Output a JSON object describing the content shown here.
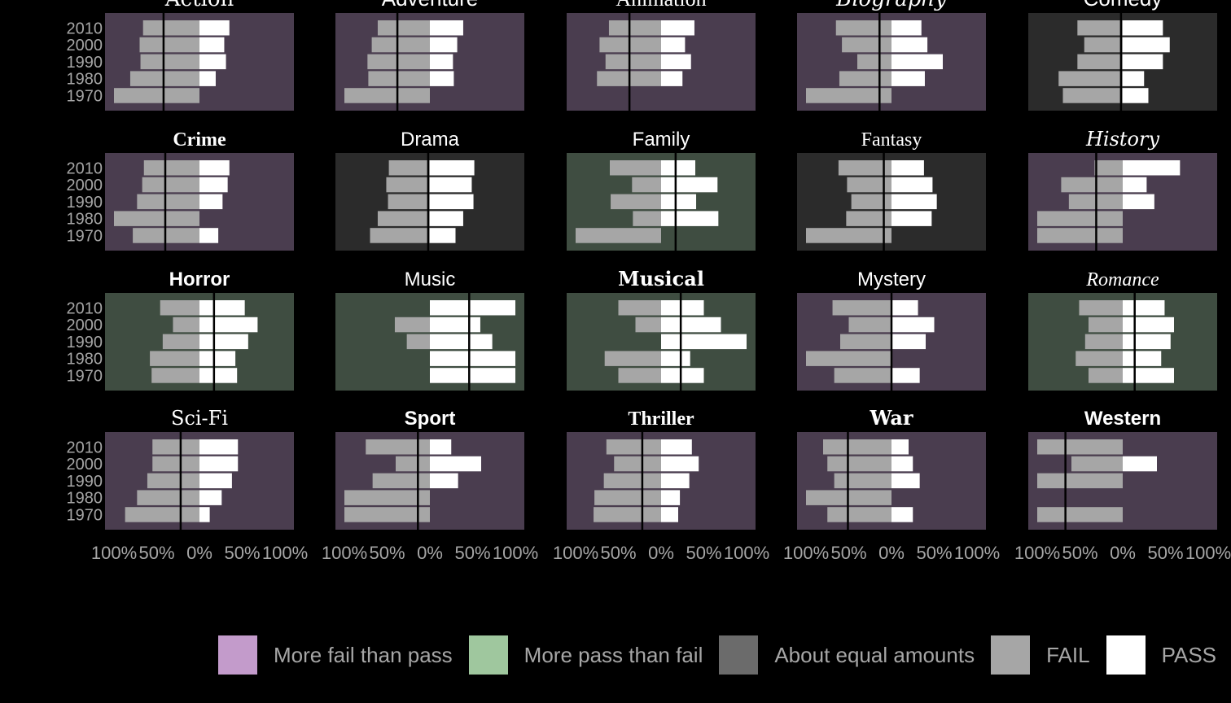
{
  "chart_data": {
    "type": "bar",
    "orientation": "horizontal",
    "layout": "facet grid, 4 rows x 5 columns",
    "x_ticks": [
      "100%",
      "50%",
      "0%",
      "50%",
      "100%"
    ],
    "xlim": [
      -1,
      1
    ],
    "years": [
      "2010",
      "2000",
      "1990",
      "1980",
      "1970"
    ],
    "legend_position": "bottom",
    "colors": {
      "fail_bar": "#a6a6a6",
      "pass_bar": "#ffffff",
      "more_fail_panel": "#4a3d4f",
      "more_pass_panel": "#3f4d41",
      "equal_panel": "#2b2b2b"
    },
    "legend": [
      {
        "label": "More fail than pass",
        "color": "#c39bcb"
      },
      {
        "label": "More pass than fail",
        "color": "#9fc79e"
      },
      {
        "label": "About equal amounts",
        "color": "#6b6b6b"
      },
      {
        "label": "FAIL",
        "color": "#a6a6a6"
      },
      {
        "label": "PASS",
        "color": "#ffffff"
      }
    ],
    "panels": [
      {
        "title": "Action",
        "category": "more_fail",
        "net": -0.42,
        "fail": [
          0.66,
          0.7,
          0.69,
          0.81,
          1.0
        ],
        "pass": [
          0.35,
          0.29,
          0.31,
          0.19,
          0.0
        ]
      },
      {
        "title": "Adventure",
        "category": "more_fail",
        "net": -0.38,
        "fail": [
          0.61,
          0.68,
          0.73,
          0.72,
          1.0
        ],
        "pass": [
          0.39,
          0.32,
          0.27,
          0.28,
          0.0
        ]
      },
      {
        "title": "Animation",
        "category": "more_fail",
        "net": -0.37,
        "fail": [
          0.61,
          0.72,
          0.65,
          0.75,
          0.0
        ],
        "pass": [
          0.39,
          0.28,
          0.35,
          0.25,
          0.0
        ]
      },
      {
        "title": "Biography",
        "category": "more_fail",
        "net": -0.14,
        "fail": [
          0.65,
          0.58,
          0.4,
          0.61,
          1.0
        ],
        "pass": [
          0.35,
          0.42,
          0.6,
          0.39,
          0.0
        ]
      },
      {
        "title": "Comedy",
        "category": "equal",
        "net": -0.02,
        "fail": [
          0.53,
          0.45,
          0.53,
          0.75,
          0.7
        ],
        "pass": [
          0.47,
          0.55,
          0.47,
          0.25,
          0.3
        ]
      },
      {
        "title": "Crime",
        "category": "more_fail",
        "net": -0.4,
        "fail": [
          0.65,
          0.67,
          0.73,
          1.0,
          0.78
        ],
        "pass": [
          0.35,
          0.33,
          0.27,
          0.0,
          0.22
        ]
      },
      {
        "title": "Drama",
        "category": "equal",
        "net": -0.02,
        "fail": [
          0.48,
          0.51,
          0.49,
          0.61,
          0.7
        ],
        "pass": [
          0.52,
          0.49,
          0.51,
          0.39,
          0.3
        ]
      },
      {
        "title": "Family",
        "category": "more_pass",
        "net": 0.17,
        "fail": [
          0.6,
          0.34,
          0.59,
          0.33,
          1.0
        ],
        "pass": [
          0.4,
          0.66,
          0.41,
          0.67,
          0.0
        ]
      },
      {
        "title": "Fantasy",
        "category": "equal",
        "net": -0.09,
        "fail": [
          0.62,
          0.52,
          0.47,
          0.53,
          1.0
        ],
        "pass": [
          0.38,
          0.48,
          0.53,
          0.47,
          0.0
        ]
      },
      {
        "title": "History",
        "category": "more_fail",
        "net": -0.31,
        "fail": [
          0.33,
          0.72,
          0.63,
          1.0,
          1.0
        ],
        "pass": [
          0.67,
          0.28,
          0.37,
          0.0,
          0.0
        ]
      },
      {
        "title": "Horror",
        "category": "more_pass",
        "net": 0.17,
        "fail": [
          0.46,
          0.31,
          0.43,
          0.58,
          0.56
        ],
        "pass": [
          0.53,
          0.68,
          0.57,
          0.42,
          0.44
        ]
      },
      {
        "title": "Music",
        "category": "more_pass",
        "net": 0.46,
        "fail": [
          0.0,
          0.41,
          0.27,
          0.0,
          0.0
        ],
        "pass": [
          1.0,
          0.59,
          0.73,
          1.0,
          1.0
        ]
      },
      {
        "title": "Musical",
        "category": "more_pass",
        "net": 0.23,
        "fail": [
          0.5,
          0.3,
          0.0,
          0.66,
          0.5
        ],
        "pass": [
          0.5,
          0.7,
          1.0,
          0.34,
          0.5
        ]
      },
      {
        "title": "Mystery",
        "category": "more_fail",
        "net": 0.0,
        "fail": [
          0.69,
          0.5,
          0.6,
          1.0,
          0.67
        ],
        "pass": [
          0.31,
          0.5,
          0.4,
          0.0,
          0.33
        ]
      },
      {
        "title": "Romance",
        "category": "more_pass",
        "net": 0.14,
        "fail": [
          0.51,
          0.4,
          0.44,
          0.55,
          0.4
        ],
        "pass": [
          0.49,
          0.6,
          0.56,
          0.45,
          0.6
        ]
      },
      {
        "title": "Sci-Fi",
        "category": "more_fail",
        "net": -0.22,
        "fail": [
          0.55,
          0.55,
          0.61,
          0.73,
          0.87
        ],
        "pass": [
          0.45,
          0.45,
          0.38,
          0.26,
          0.12
        ]
      },
      {
        "title": "Sport",
        "category": "more_fail",
        "net": -0.14,
        "fail": [
          0.75,
          0.4,
          0.67,
          1.0,
          1.0
        ],
        "pass": [
          0.25,
          0.6,
          0.33,
          0.0,
          0.0
        ]
      },
      {
        "title": "Thriller",
        "category": "more_fail",
        "net": -0.22,
        "fail": [
          0.64,
          0.55,
          0.67,
          0.78,
          0.79
        ],
        "pass": [
          0.36,
          0.44,
          0.33,
          0.22,
          0.2
        ]
      },
      {
        "title": "War",
        "category": "more_fail",
        "net": -0.51,
        "fail": [
          0.8,
          0.75,
          0.67,
          1.0,
          0.75
        ],
        "pass": [
          0.2,
          0.25,
          0.33,
          0.0,
          0.25
        ]
      },
      {
        "title": "Western",
        "category": "more_fail",
        "net": -0.67,
        "fail": [
          1.0,
          0.6,
          1.0,
          0.0,
          1.0
        ],
        "pass": [
          0.0,
          0.4,
          0.0,
          0.0,
          0.0
        ]
      }
    ]
  }
}
